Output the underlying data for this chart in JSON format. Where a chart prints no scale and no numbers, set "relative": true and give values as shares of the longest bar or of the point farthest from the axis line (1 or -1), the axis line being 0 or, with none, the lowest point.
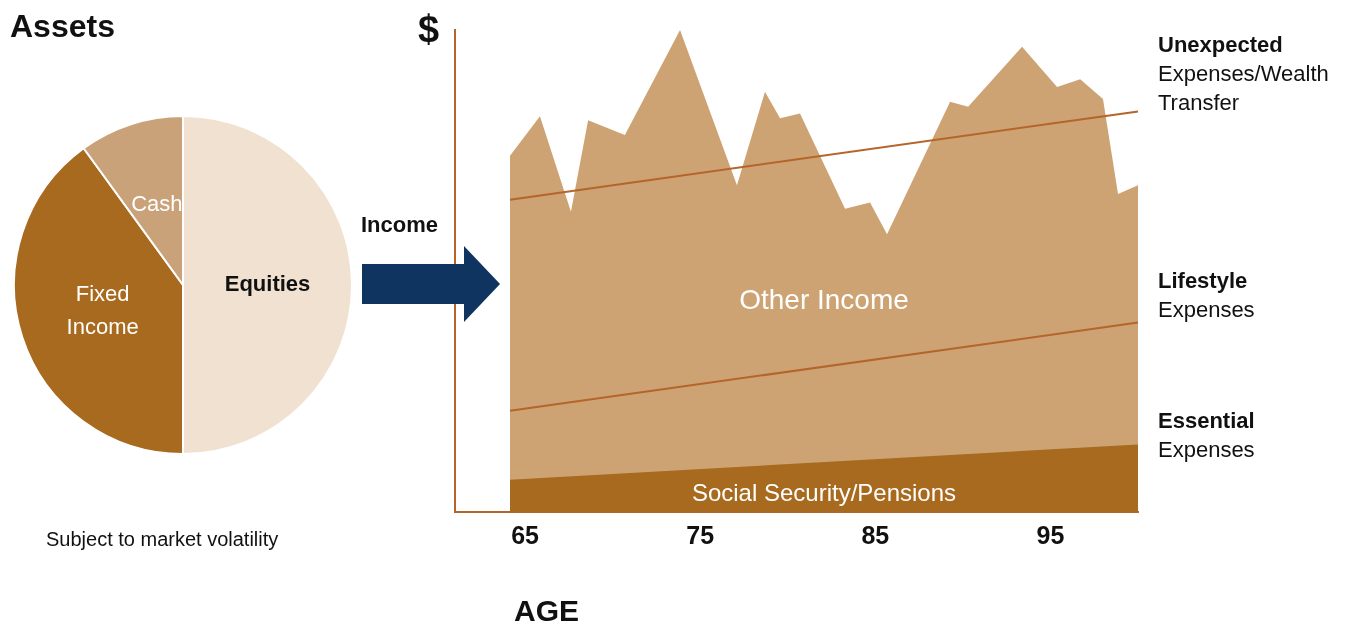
{
  "chart_data": [
    {
      "type": "pie",
      "title": "Assets",
      "categories": [
        "Equities",
        "Fixed Income",
        "Cash"
      ],
      "values": [
        50,
        40,
        10
      ],
      "colors": [
        "#f0e1d1",
        "#a86a1e",
        "#caa27a"
      ],
      "data_labels": false,
      "legend": false,
      "annotations": [
        "Subject to market volatility"
      ]
    },
    {
      "type": "area",
      "relative": true,
      "xlabel": "AGE",
      "ylabel": "$",
      "xlim": [
        61,
        100
      ],
      "xticks": [
        65,
        75,
        85,
        95
      ],
      "grid": false,
      "legend": false,
      "tick_labels": "x",
      "series": [
        {
          "name": "Other Income",
          "type": "area",
          "color": "#cda374",
          "x": [
            64.14,
            65.85,
            67.62,
            68.6,
            70.7,
            73.85,
            77.1,
            78.7,
            79.56,
            80.7,
            83.27,
            84.7,
            85.67,
            89.27,
            90.3,
            93.38,
            95.38,
            96.7,
            98.0,
            98.86,
            100
          ],
          "values": [
            0.739,
            0.821,
            0.623,
            0.813,
            0.782,
            1,
            0.678,
            0.872,
            0.817,
            0.827,
            0.629,
            0.642,
            0.576,
            0.851,
            0.841,
            0.965,
            0.882,
            0.898,
            0.857,
            0.66,
            0.678
          ]
        },
        {
          "name": "Social Security/Pensions",
          "type": "area",
          "color": "#a86a1e",
          "x": [
            64.14,
            100
          ],
          "values": [
            0.067,
            0.14
          ]
        },
        {
          "type": "line",
          "color": "#b5652a",
          "x": [
            64.14,
            100
          ],
          "values": [
            0.21,
            0.393
          ]
        },
        {
          "type": "line",
          "color": "#b5652a",
          "x": [
            64.14,
            100
          ],
          "values": [
            0.648,
            0.831
          ]
        }
      ],
      "annotations": [
        "Income",
        "Unexpected Expenses/Wealth Transfer",
        "Lifestyle Expenses",
        "Essential Expenses"
      ]
    }
  ]
}
